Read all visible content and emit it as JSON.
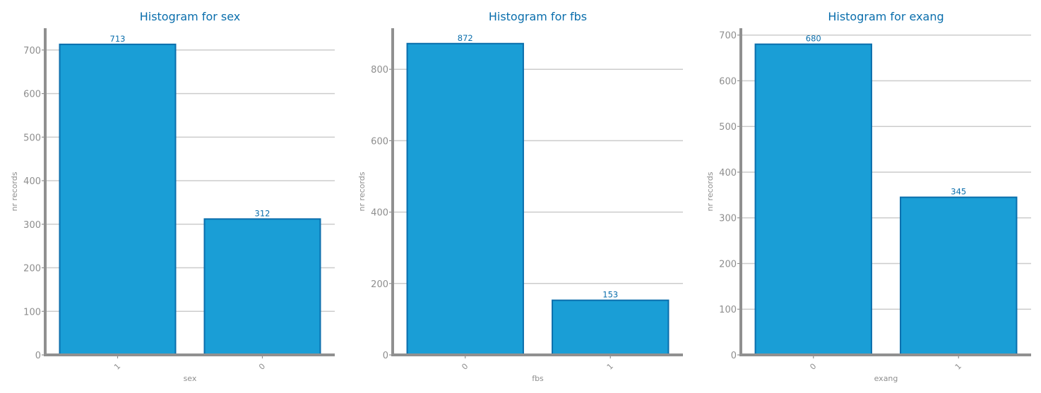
{
  "colors": {
    "bar_fill": "#1a9ed6",
    "bar_edge": "#0a6eac",
    "title": "#0a6eac",
    "axis": "#909090",
    "grid": "#cccccc",
    "tick_text": "#8e8e8e"
  },
  "chart_data": [
    {
      "type": "bar",
      "title": "Histogram for sex",
      "xlabel": "sex",
      "ylabel": "nr records",
      "categories": [
        "1",
        "0"
      ],
      "values": [
        713,
        312
      ],
      "data_labels": [
        "713",
        "312"
      ],
      "ylim": [
        0,
        750
      ],
      "yticks": [
        0,
        100,
        200,
        300,
        400,
        500,
        600,
        700
      ],
      "grid": "horizontal",
      "legend": "none"
    },
    {
      "type": "bar",
      "title": "Histogram for fbs",
      "xlabel": "fbs",
      "ylabel": "nr records",
      "categories": [
        "0",
        "1"
      ],
      "values": [
        872,
        153
      ],
      "data_labels": [
        "872",
        "153"
      ],
      "ylim": [
        0,
        915
      ],
      "yticks": [
        0,
        200,
        400,
        600,
        800
      ],
      "grid": "horizontal",
      "legend": "none"
    },
    {
      "type": "bar",
      "title": "Histogram for exang",
      "xlabel": "exang",
      "ylabel": "nr records",
      "categories": [
        "0",
        "1"
      ],
      "values": [
        680,
        345
      ],
      "data_labels": [
        "680",
        "345"
      ],
      "ylim": [
        0,
        715
      ],
      "yticks": [
        0,
        100,
        200,
        300,
        400,
        500,
        600,
        700
      ],
      "grid": "horizontal",
      "legend": "none"
    }
  ]
}
